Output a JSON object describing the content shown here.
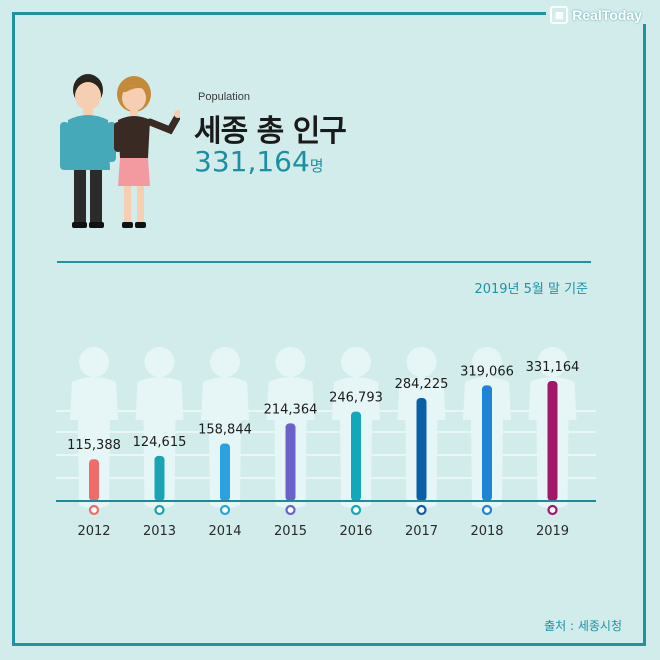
{
  "brand": {
    "name": "RealToday",
    "icon": "realtoday-logo-icon"
  },
  "header": {
    "label": "Population",
    "title": "세종 총 인구",
    "value": "331,164",
    "unit": "명"
  },
  "basis_note": "2019년 5월 말 기준",
  "source_note": "출처 : 세종시청",
  "chart_data": {
    "type": "bar",
    "categories": [
      "2012",
      "2013",
      "2014",
      "2015",
      "2016",
      "2017",
      "2018",
      "2019"
    ],
    "values": [
      115388,
      124615,
      158844,
      214364,
      246793,
      284225,
      319066,
      331164
    ],
    "value_labels": [
      "115,388",
      "124,615",
      "158,844",
      "214,364",
      "246,793",
      "284,225",
      "319,066",
      "331,164"
    ],
    "colors": [
      "#f26b6b",
      "#1aa3b4",
      "#2aa2e0",
      "#6a62c8",
      "#12a7b9",
      "#0b5fa6",
      "#1f84d6",
      "#a3176b"
    ],
    "title": "",
    "xlabel": "",
    "ylabel": "",
    "grid": true,
    "legend": "none"
  }
}
